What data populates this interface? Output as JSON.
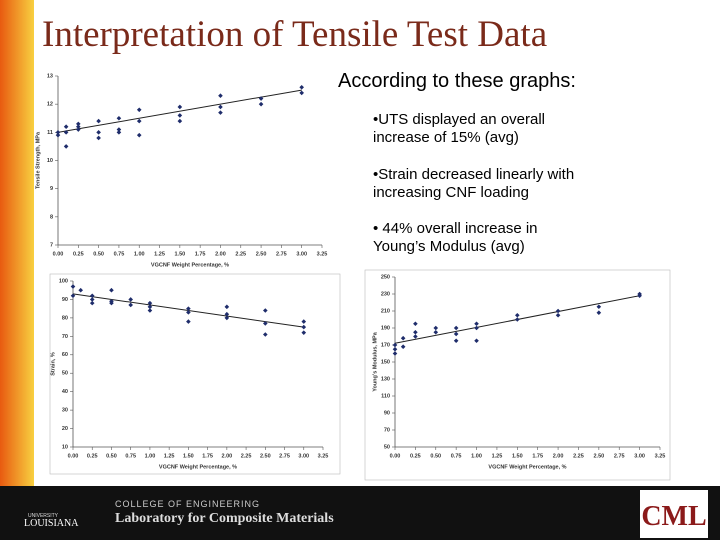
{
  "title": "Interpretation of Tensile Test Data",
  "intro": "According to these graphs:",
  "bullets": [
    "•UTS displayed an overall increase of 15% (avg)",
    "•Strain decreased linearly with increasing CNF loading",
    "• 44% overall increase in Young’s Modulus (avg)"
  ],
  "footer": {
    "college": "COLLEGE OF ENGINEERING",
    "lab": "Laboratory for Composite Materials",
    "university": "UNIVERSITY",
    "state": "LOUISIANA",
    "logo": "CML"
  },
  "chart_data": [
    {
      "type": "scatter",
      "x_label": "VGCNF Weight Percentage, %",
      "y_label": "Tensile Strength, MPa",
      "color": "#1f2d6b",
      "x": [
        0,
        0,
        0.1,
        0.1,
        0.1,
        0.25,
        0.25,
        0.25,
        0.5,
        0.5,
        0.5,
        0.75,
        0.75,
        0.75,
        1.0,
        1.0,
        1.0,
        1.5,
        1.5,
        1.5,
        2.0,
        2.0,
        2.0,
        2.5,
        2.5,
        3.0,
        3.0
      ],
      "y": [
        11.0,
        10.9,
        11.2,
        10.5,
        11.0,
        11.2,
        11.3,
        11.1,
        11.4,
        11.0,
        10.8,
        11.5,
        11.1,
        11.0,
        11.8,
        11.4,
        10.9,
        11.9,
        11.6,
        11.4,
        12.3,
        11.9,
        11.7,
        12.2,
        12.0,
        12.6,
        12.4
      ],
      "trend": {
        "x": [
          0,
          3
        ],
        "y": [
          11.0,
          12.5
        ]
      },
      "xlim": [
        0,
        3.25
      ],
      "ylim": [
        7,
        13
      ],
      "xticks": [
        {
          "value": 0,
          "label": "0.00"
        },
        {
          "value": 0.25,
          "label": "0.25"
        },
        {
          "value": 0.5,
          "label": "0.50"
        },
        {
          "value": 0.75,
          "label": "0.75"
        },
        {
          "value": 1,
          "label": "1.00"
        },
        {
          "value": 1.25,
          "label": "1.25"
        },
        {
          "value": 1.5,
          "label": "1.50"
        },
        {
          "value": 1.75,
          "label": "1.75"
        },
        {
          "value": 2,
          "label": "2.00"
        },
        {
          "value": 2.25,
          "label": "2.25"
        },
        {
          "value": 2.5,
          "label": "2.50"
        },
        {
          "value": 2.75,
          "label": "2.75"
        },
        {
          "value": 3,
          "label": "3.00"
        },
        {
          "value": 3.25,
          "label": "3.25"
        }
      ],
      "yticks": [
        7,
        8,
        9,
        10,
        11,
        12,
        13
      ]
    },
    {
      "type": "scatter",
      "x_label": "VGCNF Weight Percentage, %",
      "y_label": "Strain, %",
      "color": "#1f2d6b",
      "x": [
        0,
        0,
        0.1,
        0.25,
        0.25,
        0.25,
        0.5,
        0.5,
        0.5,
        0.75,
        0.75,
        1.0,
        1.0,
        1.0,
        1.5,
        1.5,
        1.5,
        2.0,
        2.0,
        2.0,
        2.5,
        2.5,
        2.5,
        3.0,
        3.0,
        3.0
      ],
      "y": [
        97,
        92,
        95,
        92,
        90,
        88,
        95,
        89,
        88,
        90,
        87,
        88,
        86,
        84,
        85,
        83,
        78,
        86,
        82,
        80,
        84,
        77,
        71,
        78,
        75,
        72
      ],
      "trend": {
        "x": [
          0,
          3
        ],
        "y": [
          93,
          75
        ]
      },
      "xlim": [
        0,
        3.25
      ],
      "ylim": [
        10,
        100
      ],
      "xticks": [
        {
          "value": 0,
          "label": "0.00"
        },
        {
          "value": 0.25,
          "label": "0.25"
        },
        {
          "value": 0.5,
          "label": "0.50"
        },
        {
          "value": 0.75,
          "label": "0.75"
        },
        {
          "value": 1,
          "label": "1.00"
        },
        {
          "value": 1.25,
          "label": "1.25"
        },
        {
          "value": 1.5,
          "label": "1.50"
        },
        {
          "value": 1.75,
          "label": "1.75"
        },
        {
          "value": 2,
          "label": "2.00"
        },
        {
          "value": 2.25,
          "label": "2.25"
        },
        {
          "value": 2.5,
          "label": "2.50"
        },
        {
          "value": 2.75,
          "label": "2.75"
        },
        {
          "value": 3,
          "label": "3.00"
        },
        {
          "value": 3.25,
          "label": "3.25"
        }
      ],
      "yticks": [
        10,
        20,
        30,
        40,
        50,
        60,
        70,
        80,
        90,
        100
      ]
    },
    {
      "type": "scatter",
      "x_label": "VGCNF Weight Percentage, %",
      "y_label": "Young’s Modulus, MPa",
      "color": "#1f2d6b",
      "x": [
        0,
        0,
        0,
        0.1,
        0.1,
        0.25,
        0.25,
        0.25,
        0.5,
        0.5,
        0.75,
        0.75,
        0.75,
        1.0,
        1.0,
        1.0,
        1.5,
        1.5,
        2.0,
        2.0,
        2.5,
        2.5,
        3.0,
        3.0
      ],
      "y": [
        160,
        165,
        170,
        168,
        178,
        195,
        185,
        180,
        190,
        185,
        190,
        183,
        175,
        195,
        190,
        175,
        205,
        200,
        210,
        205,
        215,
        208,
        230,
        228
      ],
      "trend": {
        "x": [
          0,
          3
        ],
        "y": [
          172,
          228
        ]
      },
      "xlim": [
        0,
        3.25
      ],
      "ylim": [
        50,
        250
      ],
      "xticks": [
        {
          "value": 0,
          "label": "0.00"
        },
        {
          "value": 0.25,
          "label": "0.25"
        },
        {
          "value": 0.5,
          "label": "0.50"
        },
        {
          "value": 0.75,
          "label": "0.75"
        },
        {
          "value": 1,
          "label": "1.00"
        },
        {
          "value": 1.25,
          "label": "1.25"
        },
        {
          "value": 1.5,
          "label": "1.50"
        },
        {
          "value": 1.75,
          "label": "1.75"
        },
        {
          "value": 2,
          "label": "2.00"
        },
        {
          "value": 2.25,
          "label": "2.25"
        },
        {
          "value": 2.5,
          "label": "2.50"
        },
        {
          "value": 2.75,
          "label": "2.75"
        },
        {
          "value": 3,
          "label": "3.00"
        },
        {
          "value": 3.25,
          "label": "3.25"
        }
      ],
      "yticks": [
        50,
        70,
        90,
        110,
        130,
        150,
        170,
        190,
        210,
        230,
        250
      ]
    }
  ]
}
